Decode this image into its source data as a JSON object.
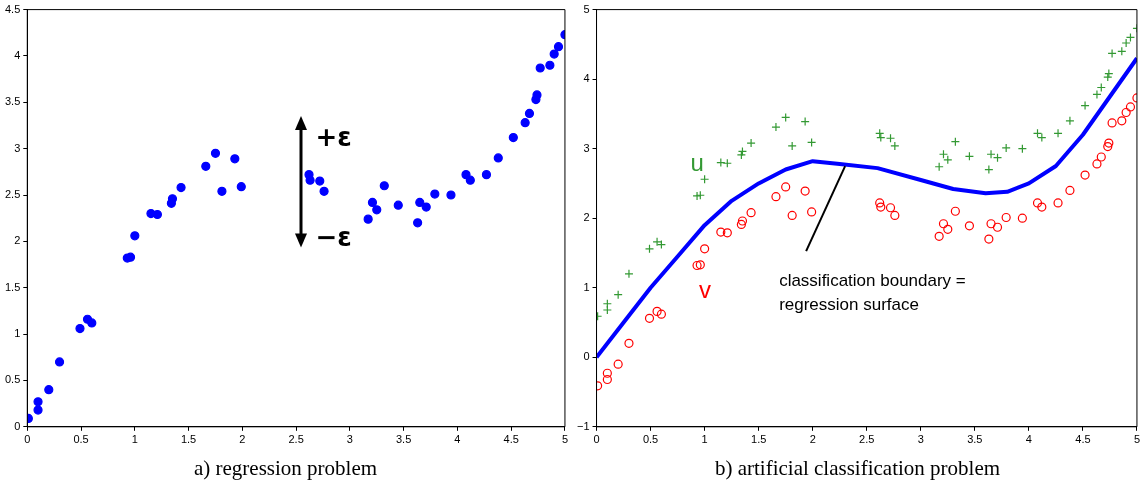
{
  "chart_data": [
    {
      "type": "scatter",
      "color": "#0000ff",
      "marker": "circle",
      "grid": false,
      "x": [
        0.01,
        0.1,
        0.1,
        0.2,
        0.3,
        0.49,
        0.56,
        0.6,
        0.93,
        0.96,
        1.0,
        1.15,
        1.21,
        1.34,
        1.35,
        1.43,
        1.66,
        1.75,
        1.81,
        1.93,
        1.99,
        2.62,
        2.63,
        2.72,
        2.76,
        3.17,
        3.21,
        3.25,
        3.32,
        3.45,
        3.63,
        3.65,
        3.71,
        3.79,
        3.94,
        4.08,
        4.12,
        4.27,
        4.38,
        4.52,
        4.63,
        4.67,
        4.73,
        4.74,
        4.77,
        4.86,
        4.9,
        4.94,
        5.0
      ],
      "values": [
        0.09,
        0.27,
        0.18,
        0.4,
        0.7,
        1.06,
        1.16,
        1.12,
        1.82,
        1.83,
        2.06,
        2.3,
        2.29,
        2.41,
        2.46,
        2.58,
        2.81,
        2.95,
        2.54,
        2.89,
        2.59,
        2.72,
        2.66,
        2.65,
        2.54,
        2.24,
        2.42,
        2.34,
        2.6,
        2.39,
        2.2,
        2.42,
        2.37,
        2.51,
        2.5,
        2.72,
        2.66,
        2.72,
        2.9,
        3.12,
        3.28,
        3.38,
        3.53,
        3.58,
        3.87,
        3.9,
        4.02,
        4.1,
        4.23
      ],
      "xlim": [
        0,
        5
      ],
      "xticks": [
        0,
        0.5,
        1,
        1.5,
        2,
        2.5,
        3,
        3.5,
        4,
        4.5,
        5
      ],
      "ylim": [
        0,
        4.5
      ],
      "yticks": [
        0,
        0.5,
        1,
        1.5,
        2,
        2.5,
        3,
        3.5,
        4,
        4.5
      ],
      "annotations": [
        "+ε",
        "−ε",
        "a) regression problem"
      ]
    },
    {
      "type": "scatter",
      "grid": false,
      "x": [
        0.01,
        0.1,
        0.1,
        0.2,
        0.3,
        0.49,
        0.56,
        0.6,
        0.93,
        0.96,
        1.0,
        1.15,
        1.21,
        1.34,
        1.35,
        1.43,
        1.66,
        1.75,
        1.81,
        1.93,
        1.99,
        2.62,
        2.63,
        2.72,
        2.76,
        3.17,
        3.21,
        3.25,
        3.32,
        3.45,
        3.63,
        3.65,
        3.71,
        3.79,
        3.94,
        4.08,
        4.12,
        4.27,
        4.38,
        4.52,
        4.63,
        4.67,
        4.73,
        4.74,
        4.77,
        4.86,
        4.9,
        4.94,
        5.0
      ],
      "series": [
        {
          "name": "u",
          "type": "scatter",
          "marker": "cross",
          "color": "#339933",
          "values": [
            0.59,
            0.77,
            0.68,
            0.9,
            1.2,
            1.56,
            1.66,
            1.62,
            2.32,
            2.33,
            2.56,
            2.8,
            2.79,
            2.91,
            2.96,
            3.08,
            3.31,
            3.45,
            3.04,
            3.39,
            3.09,
            3.22,
            3.16,
            3.15,
            3.04,
            2.74,
            2.92,
            2.84,
            3.1,
            2.89,
            2.7,
            2.92,
            2.87,
            3.01,
            3.0,
            3.22,
            3.16,
            3.22,
            3.4,
            3.62,
            3.78,
            3.88,
            4.03,
            4.08,
            4.37,
            4.4,
            4.52,
            4.6,
            4.73
          ]
        },
        {
          "name": "v",
          "type": "scatter",
          "marker": "circle",
          "color": "#ff0000",
          "values": [
            -0.41,
            -0.23,
            -0.32,
            -0.1,
            0.2,
            0.56,
            0.66,
            0.62,
            1.32,
            1.33,
            1.56,
            1.8,
            1.79,
            1.91,
            1.96,
            2.08,
            2.31,
            2.45,
            2.04,
            2.39,
            2.09,
            2.22,
            2.16,
            2.15,
            2.04,
            1.74,
            1.92,
            1.84,
            2.1,
            1.89,
            1.7,
            1.92,
            1.87,
            2.01,
            2.0,
            2.22,
            2.16,
            2.22,
            2.4,
            2.62,
            2.78,
            2.88,
            3.03,
            3.08,
            3.37,
            3.4,
            3.52,
            3.6,
            3.73
          ]
        },
        {
          "type": "line",
          "color": "#0000ff",
          "line_style": "solid",
          "marker": "none",
          "x": [
            0,
            0.25,
            0.5,
            0.75,
            1,
            1.25,
            1.5,
            1.75,
            2,
            2.25,
            2.6,
            3,
            3.3,
            3.6,
            3.8,
            4,
            4.25,
            4.5,
            4.75,
            5
          ],
          "values": [
            0,
            0.5,
            1.0,
            1.45,
            1.9,
            2.25,
            2.5,
            2.7,
            2.82,
            2.78,
            2.72,
            2.55,
            2.42,
            2.36,
            2.38,
            2.5,
            2.75,
            3.2,
            3.75,
            4.3
          ]
        }
      ],
      "xlim": [
        0,
        5
      ],
      "xticks": [
        0,
        0.5,
        1,
        1.5,
        2,
        2.5,
        3,
        3.5,
        4,
        4.5,
        5
      ],
      "ylim": [
        -1,
        5
      ],
      "yticks": [
        -1,
        0,
        1,
        2,
        3,
        4,
        5
      ],
      "annotations": [
        {
          "text": "classification boundary =\nregression surface",
          "x": 2.3,
          "y": 2.75
        },
        "b) artificial classification problem"
      ]
    }
  ]
}
